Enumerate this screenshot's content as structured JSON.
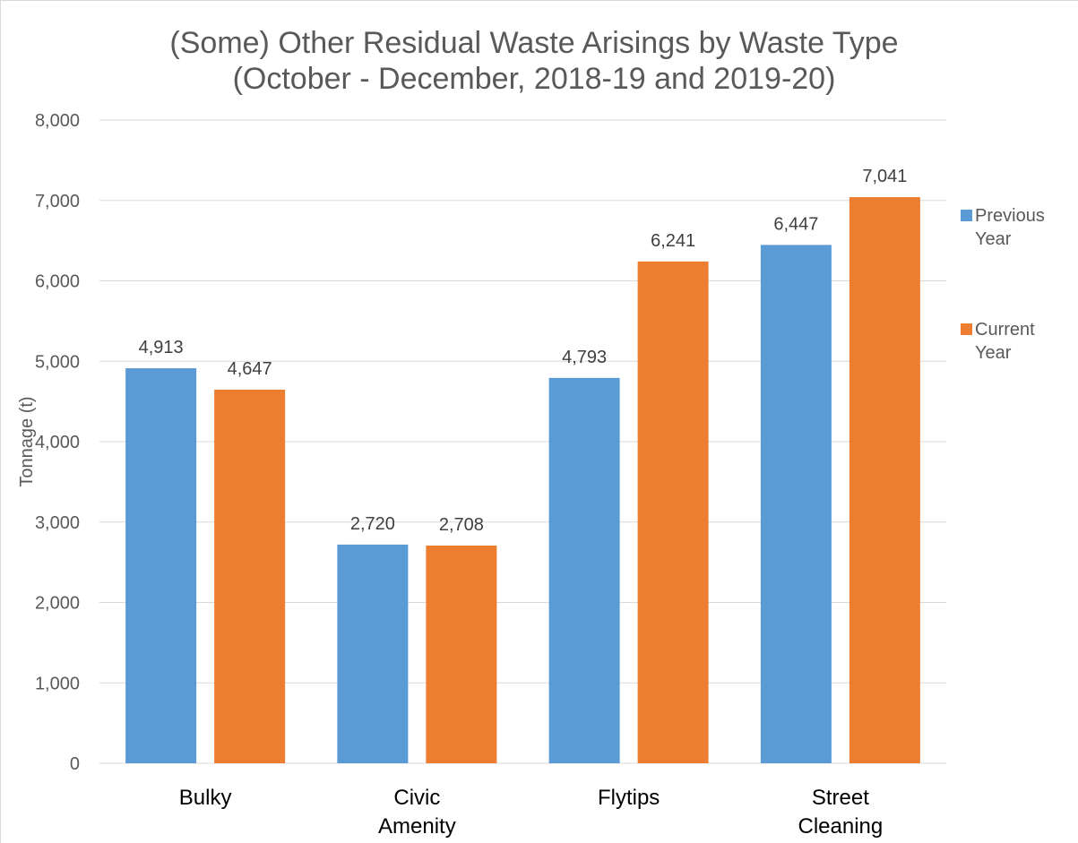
{
  "chart_data": {
    "type": "bar",
    "title_lines": [
      "(Some) Other Residual Waste Arisings by Waste Type",
      "(October - December, 2018-19 and 2019-20)"
    ],
    "ylabel": "Tonnage (t)",
    "xlabel": "",
    "ylim": [
      0,
      8000
    ],
    "yticks": [
      0,
      1000,
      2000,
      3000,
      4000,
      5000,
      6000,
      7000,
      8000
    ],
    "ytick_labels": [
      "0",
      "1,000",
      "2,000",
      "3,000",
      "4,000",
      "5,000",
      "6,000",
      "7,000",
      "8,000"
    ],
    "categories": [
      [
        "Bulky"
      ],
      [
        "Civic",
        "Amenity"
      ],
      [
        "Flytips"
      ],
      [
        "Street",
        "Cleaning"
      ]
    ],
    "series": [
      {
        "name_lines": [
          "Previous",
          "Year"
        ],
        "color": "#5b9bd5",
        "values": [
          4913,
          2720,
          4793,
          6447
        ],
        "labels": [
          "4,913",
          "2,720",
          "4,793",
          "6,447"
        ]
      },
      {
        "name_lines": [
          "Current",
          "Year"
        ],
        "color": "#ed7d31",
        "values": [
          4647,
          2708,
          6241,
          7041
        ],
        "labels": [
          "4,647",
          "2,708",
          "6,241",
          "7,041"
        ]
      }
    ],
    "grid": true,
    "legend_position": "right"
  }
}
